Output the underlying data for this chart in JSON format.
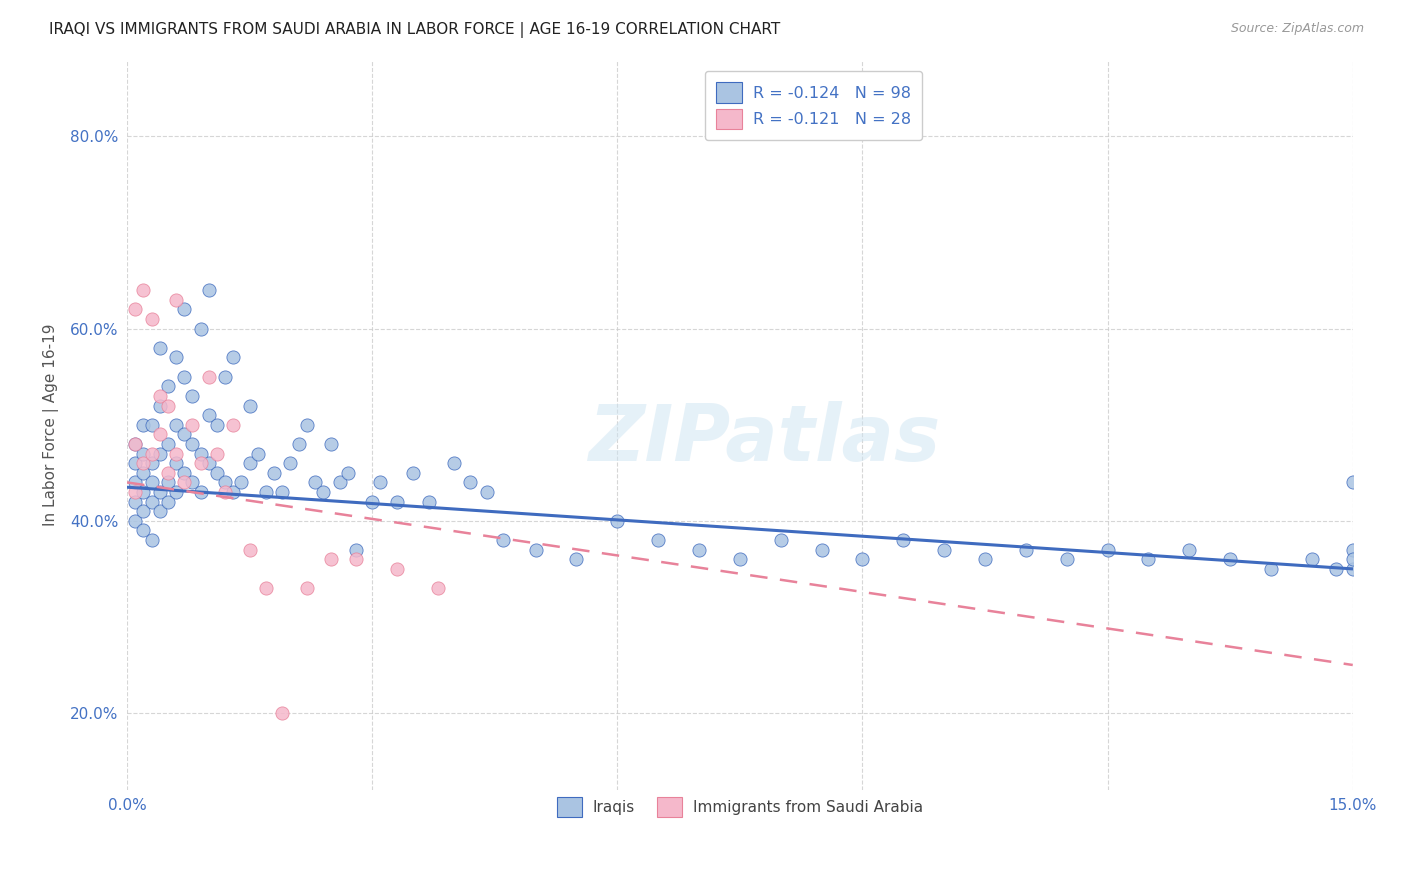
{
  "title": "IRAQI VS IMMIGRANTS FROM SAUDI ARABIA IN LABOR FORCE | AGE 16-19 CORRELATION CHART",
  "source": "Source: ZipAtlas.com",
  "ylabel_label": "In Labor Force | Age 16-19",
  "xlim": [
    0.0,
    0.15
  ],
  "ylim": [
    0.12,
    0.88
  ],
  "yticks": [
    0.2,
    0.4,
    0.6,
    0.8
  ],
  "ytick_labels": [
    "20.0%",
    "40.0%",
    "60.0%",
    "80.0%"
  ],
  "legend_label1": "Iraqis",
  "legend_label2": "Immigrants from Saudi Arabia",
  "r1": -0.124,
  "n1": 98,
  "r2": -0.121,
  "n2": 28,
  "color_iraqis": "#aac4e2",
  "color_saudi": "#f5b8cb",
  "line_color_iraqis": "#3f6bbf",
  "line_color_saudi": "#e8829a",
  "background_color": "#ffffff",
  "watermark": "ZIPatlas",
  "iraqis_x": [
    0.001,
    0.001,
    0.001,
    0.001,
    0.001,
    0.002,
    0.002,
    0.002,
    0.002,
    0.002,
    0.002,
    0.003,
    0.003,
    0.003,
    0.003,
    0.003,
    0.004,
    0.004,
    0.004,
    0.004,
    0.004,
    0.005,
    0.005,
    0.005,
    0.005,
    0.006,
    0.006,
    0.006,
    0.006,
    0.007,
    0.007,
    0.007,
    0.007,
    0.008,
    0.008,
    0.008,
    0.009,
    0.009,
    0.009,
    0.01,
    0.01,
    0.01,
    0.011,
    0.011,
    0.012,
    0.012,
    0.013,
    0.013,
    0.014,
    0.015,
    0.015,
    0.016,
    0.017,
    0.018,
    0.019,
    0.02,
    0.021,
    0.022,
    0.023,
    0.024,
    0.025,
    0.026,
    0.027,
    0.028,
    0.03,
    0.031,
    0.033,
    0.035,
    0.037,
    0.04,
    0.042,
    0.044,
    0.046,
    0.05,
    0.055,
    0.06,
    0.065,
    0.07,
    0.075,
    0.08,
    0.085,
    0.09,
    0.095,
    0.1,
    0.105,
    0.11,
    0.115,
    0.12,
    0.125,
    0.13,
    0.135,
    0.14,
    0.145,
    0.148,
    0.15,
    0.15,
    0.15,
    0.15
  ],
  "iraqis_y": [
    0.44,
    0.46,
    0.42,
    0.48,
    0.4,
    0.45,
    0.43,
    0.47,
    0.5,
    0.41,
    0.39,
    0.44,
    0.46,
    0.5,
    0.42,
    0.38,
    0.43,
    0.47,
    0.52,
    0.41,
    0.58,
    0.44,
    0.48,
    0.54,
    0.42,
    0.46,
    0.5,
    0.57,
    0.43,
    0.45,
    0.49,
    0.55,
    0.62,
    0.44,
    0.48,
    0.53,
    0.43,
    0.47,
    0.6,
    0.46,
    0.51,
    0.64,
    0.45,
    0.5,
    0.44,
    0.55,
    0.43,
    0.57,
    0.44,
    0.46,
    0.52,
    0.47,
    0.43,
    0.45,
    0.43,
    0.46,
    0.48,
    0.5,
    0.44,
    0.43,
    0.48,
    0.44,
    0.45,
    0.37,
    0.42,
    0.44,
    0.42,
    0.45,
    0.42,
    0.46,
    0.44,
    0.43,
    0.38,
    0.37,
    0.36,
    0.4,
    0.38,
    0.37,
    0.36,
    0.38,
    0.37,
    0.36,
    0.38,
    0.37,
    0.36,
    0.37,
    0.36,
    0.37,
    0.36,
    0.37,
    0.36,
    0.35,
    0.36,
    0.35,
    0.44,
    0.37,
    0.35,
    0.36
  ],
  "saudi_x": [
    0.001,
    0.001,
    0.001,
    0.002,
    0.002,
    0.003,
    0.003,
    0.004,
    0.004,
    0.005,
    0.005,
    0.006,
    0.006,
    0.007,
    0.008,
    0.009,
    0.01,
    0.011,
    0.012,
    0.013,
    0.015,
    0.017,
    0.019,
    0.022,
    0.025,
    0.028,
    0.033,
    0.038
  ],
  "saudi_y": [
    0.43,
    0.48,
    0.62,
    0.46,
    0.64,
    0.47,
    0.61,
    0.49,
    0.53,
    0.52,
    0.45,
    0.63,
    0.47,
    0.44,
    0.5,
    0.46,
    0.55,
    0.47,
    0.43,
    0.5,
    0.37,
    0.33,
    0.2,
    0.33,
    0.36,
    0.36,
    0.35,
    0.33
  ],
  "trendline_iraqis_x0": 0.0,
  "trendline_iraqis_y0": 0.435,
  "trendline_iraqis_x1": 0.15,
  "trendline_iraqis_y1": 0.35,
  "trendline_saudi_x0": 0.0,
  "trendline_saudi_y0": 0.44,
  "trendline_saudi_x1": 0.15,
  "trendline_saudi_y1": 0.25
}
